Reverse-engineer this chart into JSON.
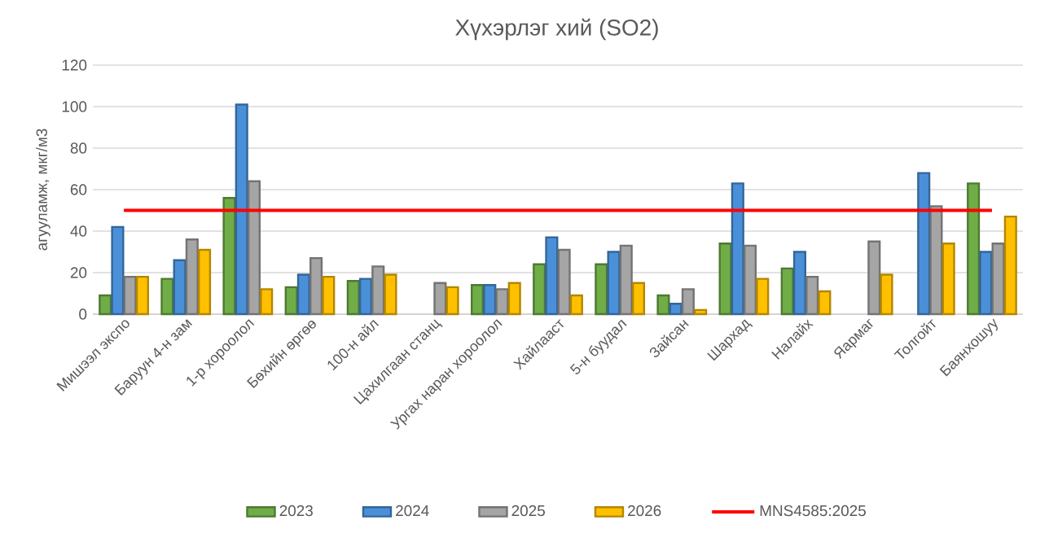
{
  "chart_data": {
    "type": "bar",
    "title": "Хүхэрлэг хий (SO2)",
    "ylabel": "агууламж, мкг/м3",
    "categories": [
      "Мишээл экспо",
      "Баруун 4-н зам",
      "1-р хороолол",
      "Бөхийн өргөө",
      "100-н айл",
      "Цахилгаан станц",
      "Ургах наран хороолол",
      "Хайлааст",
      "5-н буудал",
      "Зайсан",
      "Шархад",
      "Налайх",
      "Яармаг",
      "Толгойт",
      "Баянхошуу"
    ],
    "series": [
      {
        "name": "2023",
        "color": "#70ad47",
        "values": [
          9,
          17,
          56,
          13,
          16,
          null,
          14,
          24,
          24,
          9,
          34,
          22,
          null,
          null,
          63
        ]
      },
      {
        "name": "2024",
        "color": "#4a90d9",
        "values": [
          42,
          26,
          101,
          19,
          17,
          null,
          14,
          37,
          30,
          5,
          63,
          30,
          null,
          68,
          30
        ]
      },
      {
        "name": "2025",
        "color": "#a5a5a5",
        "values": [
          18,
          36,
          64,
          27,
          23,
          15,
          12,
          31,
          33,
          12,
          33,
          18,
          35,
          52,
          34
        ]
      },
      {
        "name": "2026",
        "color": "#ffc000",
        "values": [
          18,
          31,
          12,
          18,
          19,
          13,
          15,
          9,
          15,
          2,
          17,
          11,
          19,
          34,
          47
        ]
      },
      {
        "name": "MNS4585:2025",
        "type": "line",
        "color": "#ff0000",
        "values": [
          50,
          50,
          50,
          50,
          50,
          50,
          50,
          50,
          50,
          50,
          50,
          50,
          50,
          50,
          50
        ]
      }
    ],
    "ylim": [
      0,
      120
    ],
    "yticks": [
      0,
      20,
      40,
      60,
      80,
      100,
      120
    ],
    "grid": "y",
    "legend": "bottom"
  }
}
